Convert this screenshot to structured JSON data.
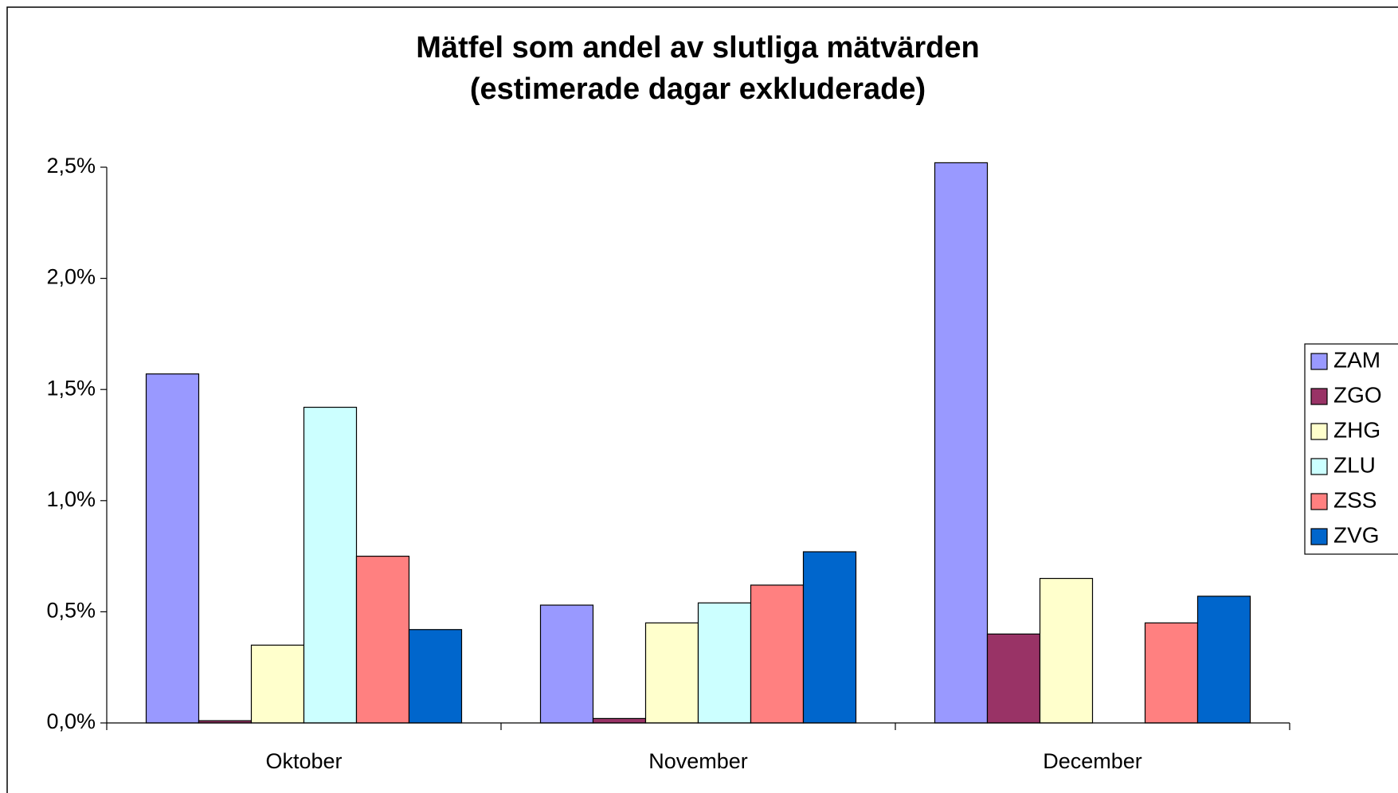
{
  "chart_data": {
    "type": "bar",
    "title": "Mätfel som andel av slutliga mätvärden",
    "subtitle": "(estimerade dagar exkluderade)",
    "categories": [
      "Oktober",
      "November",
      "December"
    ],
    "series": [
      {
        "name": "ZAM",
        "color": "#9999ff",
        "values": [
          1.57,
          0.53,
          2.52
        ]
      },
      {
        "name": "ZGO",
        "color": "#993366",
        "values": [
          0.01,
          0.02,
          0.4
        ]
      },
      {
        "name": "ZHG",
        "color": "#ffffcc",
        "values": [
          0.35,
          0.45,
          0.65
        ]
      },
      {
        "name": "ZLU",
        "color": "#ccffff",
        "values": [
          1.42,
          0.54,
          null
        ]
      },
      {
        "name": "ZSS",
        "color": "#ff8080",
        "values": [
          0.75,
          0.62,
          0.45
        ]
      },
      {
        "name": "ZVG",
        "color": "#0066cc",
        "values": [
          0.42,
          0.77,
          0.57
        ]
      }
    ],
    "ylim": [
      0,
      2.5
    ],
    "yticks": [
      {
        "value": 0,
        "label": "0,0%"
      },
      {
        "value": 0.5,
        "label": "0,5%"
      },
      {
        "value": 1,
        "label": "1,0%"
      },
      {
        "value": 1.5,
        "label": "1,5%"
      },
      {
        "value": 2,
        "label": "2,0%"
      },
      {
        "value": 2.5,
        "label": "2,5%"
      }
    ],
    "legend": "right"
  }
}
